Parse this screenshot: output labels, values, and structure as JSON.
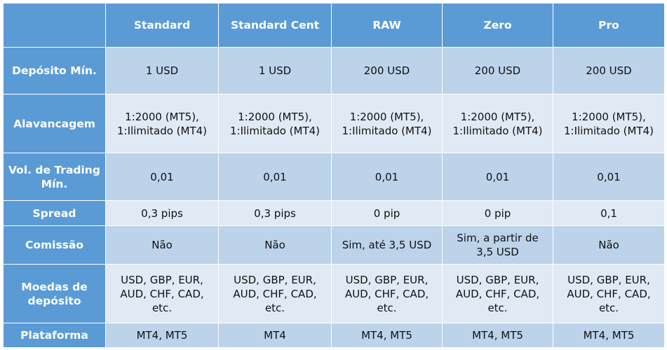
{
  "columns": [
    "",
    "Standard",
    "Standard Cent",
    "RAW",
    "Zero",
    "Pro"
  ],
  "rows": {
    "deposito": {
      "label": "Depósito Mín.",
      "values": [
        "1 USD",
        "1 USD",
        "200 USD",
        "200 USD",
        "200 USD"
      ]
    },
    "alavancagem": {
      "label": "Alavancagem",
      "line1": [
        "1:2000 (MT5),",
        "1:2000 (MT5),",
        "1:2000 (MT5),",
        "1:2000 (MT5),",
        "1:2000 (MT5),"
      ],
      "line2": [
        "1:Ilimitado (MT4)",
        "1:Ilimitado (MT4)",
        "1:Ilimitado (MT4)",
        "1:Ilimitado (MT4)",
        "1:Ilimitado (MT4)"
      ]
    },
    "volume": {
      "label_line1": "Vol. de Trading",
      "label_line2": "Mín.",
      "values": [
        "0,01",
        "0,01",
        "0,01",
        "0,01",
        "0,01"
      ]
    },
    "spread": {
      "label": "Spread",
      "values": [
        "0,3 pips",
        "0,3 pips",
        "0 pip",
        "0 pip",
        "0,1"
      ]
    },
    "comissao": {
      "label": "Comissão",
      "values": [
        "Não",
        "Não",
        "Sim, até 3,5 USD",
        "Sim, a partir de",
        "Não"
      ],
      "zero_line2": "3,5 USD"
    },
    "moedas": {
      "label_line1": "Moedas de",
      "label_line2": "depósito",
      "line1": [
        "USD, GBP, EUR,",
        "USD, GBP, EUR,",
        "USD, GBP, EUR,",
        "USD, GBP, EUR,",
        "USD, GBP, EUR,"
      ],
      "line2": [
        "AUD, CHF, CAD,",
        "AUD, CHF, CAD,",
        "AUD, CHF, CAD,",
        "AUD, CHF, CAD,",
        "AUD, CHF, CAD,"
      ],
      "line3": [
        "etc.",
        "etc.",
        "etc.",
        "etc.",
        "etc."
      ]
    },
    "plataforma": {
      "label": "Plataforma",
      "values": [
        "MT4, MT5",
        "MT4",
        "MT4, MT5",
        "MT4, MT5",
        "MT4, MT5"
      ]
    }
  },
  "colors": {
    "header_blue": "#5b9bd5",
    "row_dark": "#bcd3ea",
    "row_light": "#dfeaf5"
  }
}
